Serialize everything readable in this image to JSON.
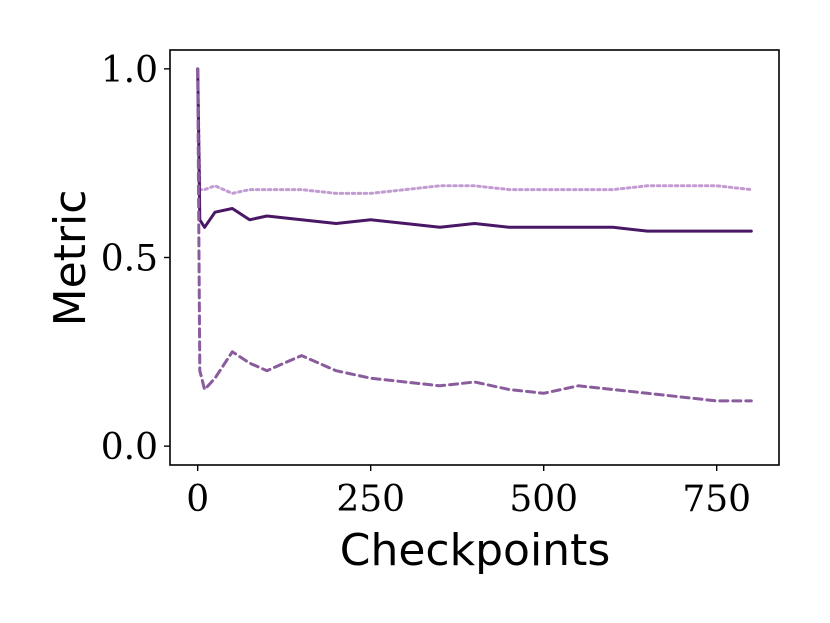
{
  "chart_data": {
    "type": "line",
    "title": "",
    "xlabel": "Checkpoints",
    "ylabel": "Metric",
    "xlim": [
      -40,
      840
    ],
    "ylim": [
      -0.05,
      1.05
    ],
    "xticks": [
      0,
      250,
      500,
      750
    ],
    "xtick_labels": [
      "0",
      "250",
      "500",
      "750"
    ],
    "yticks": [
      0.0,
      0.5,
      1.0
    ],
    "ytick_labels": [
      "0.0",
      "0.5",
      "1.0"
    ],
    "grid": false,
    "legend": "none",
    "series": [
      {
        "color": "#c39bd3",
        "style": "dotted",
        "x": [
          0,
          3,
          10,
          25,
          50,
          75,
          100,
          150,
          200,
          250,
          300,
          350,
          400,
          450,
          500,
          550,
          600,
          650,
          700,
          750,
          800
        ],
        "values": [
          1.0,
          0.68,
          0.68,
          0.69,
          0.67,
          0.68,
          0.68,
          0.68,
          0.67,
          0.67,
          0.68,
          0.69,
          0.69,
          0.68,
          0.68,
          0.68,
          0.68,
          0.69,
          0.69,
          0.69,
          0.68
        ]
      },
      {
        "color": "#4a1766",
        "style": "solid",
        "x": [
          0,
          3,
          10,
          25,
          50,
          75,
          100,
          150,
          200,
          250,
          300,
          350,
          400,
          450,
          500,
          550,
          600,
          650,
          700,
          750,
          800
        ],
        "values": [
          1.0,
          0.6,
          0.58,
          0.62,
          0.63,
          0.6,
          0.61,
          0.6,
          0.59,
          0.6,
          0.59,
          0.58,
          0.59,
          0.58,
          0.58,
          0.58,
          0.58,
          0.57,
          0.57,
          0.57,
          0.57
        ]
      },
      {
        "color": "#8a5c9e",
        "style": "dashed",
        "x": [
          0,
          3,
          10,
          25,
          50,
          75,
          100,
          150,
          200,
          250,
          300,
          350,
          400,
          450,
          500,
          550,
          600,
          650,
          700,
          750,
          800
        ],
        "values": [
          1.0,
          0.2,
          0.15,
          0.18,
          0.25,
          0.22,
          0.2,
          0.24,
          0.2,
          0.18,
          0.17,
          0.16,
          0.17,
          0.15,
          0.14,
          0.16,
          0.15,
          0.14,
          0.13,
          0.12,
          0.12
        ]
      }
    ]
  }
}
